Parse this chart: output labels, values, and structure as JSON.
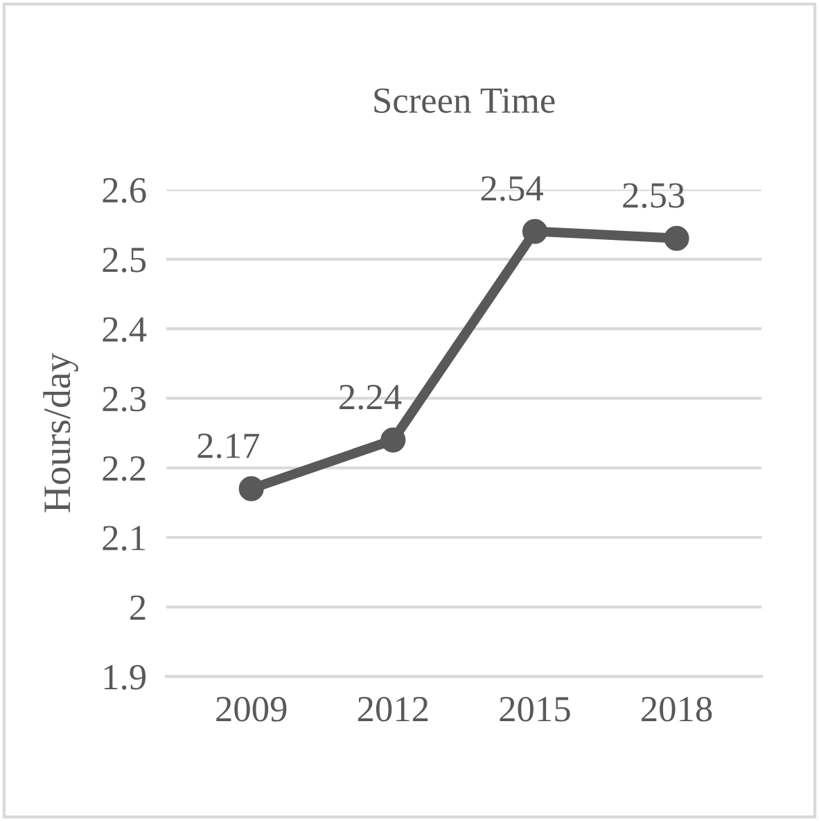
{
  "chart_data": {
    "type": "line",
    "title": "Screen Time",
    "ylabel": "Hours/day",
    "categories": [
      "2009",
      "2012",
      "2015",
      "2018"
    ],
    "series": [
      {
        "color": "#595959",
        "values": [
          2.17,
          2.24,
          2.54,
          2.53
        ]
      }
    ],
    "ylim": [
      1.9,
      2.6
    ],
    "yticks": [
      1.9,
      {
        "value": 2.0,
        "label": "2"
      },
      2.1,
      2.2,
      2.3,
      2.4,
      2.5,
      2.6
    ],
    "grid": "y",
    "marker": "circle",
    "line_style": "solid",
    "data_labels": true,
    "legend": false
  }
}
